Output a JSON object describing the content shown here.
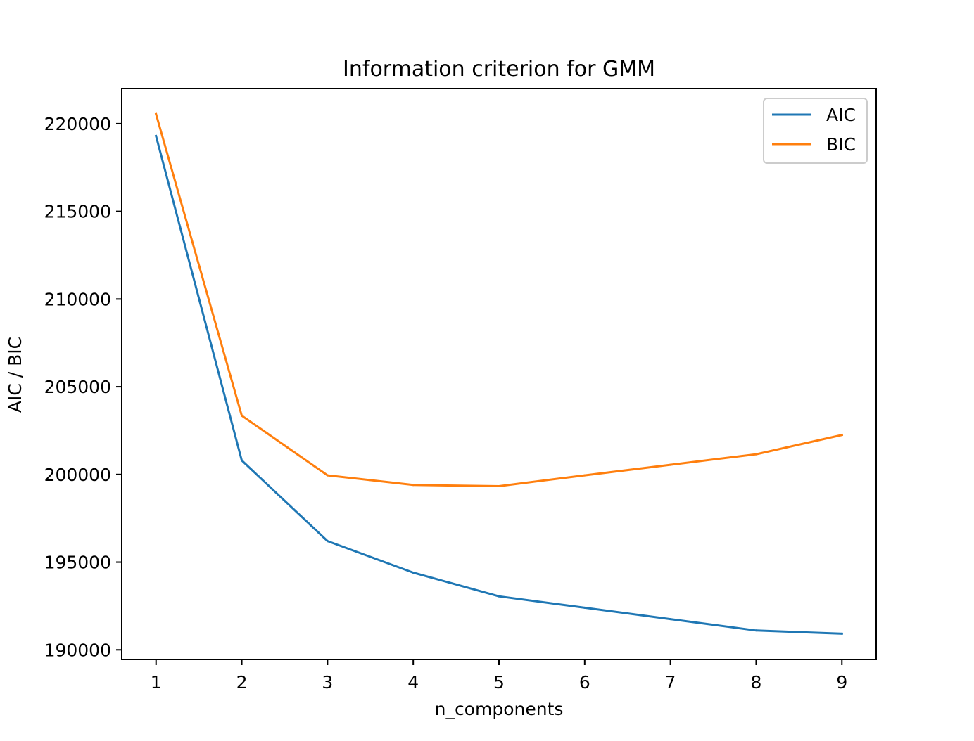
{
  "chart_data": {
    "type": "line",
    "title": "Information criterion for GMM",
    "xlabel": "n_components",
    "ylabel": "AIC / BIC",
    "x": [
      1,
      2,
      3,
      4,
      5,
      6,
      7,
      8,
      9
    ],
    "xlim": [
      0.6,
      9.4
    ],
    "ylim": [
      189450,
      222000
    ],
    "x_ticks": [
      1,
      2,
      3,
      4,
      5,
      6,
      7,
      8,
      9
    ],
    "y_ticks": [
      190000,
      195000,
      200000,
      205000,
      210000,
      215000,
      220000
    ],
    "grid": false,
    "legend_position": "top-right",
    "series": [
      {
        "name": "AIC",
        "color": "#1f77b4",
        "values": [
          219300,
          200800,
          196200,
          194400,
          193050,
          192400,
          191750,
          191100,
          190920
        ]
      },
      {
        "name": "BIC",
        "color": "#ff7f0e",
        "values": [
          220550,
          203350,
          199950,
          199400,
          199330,
          199950,
          200550,
          201150,
          202250
        ]
      }
    ]
  }
}
